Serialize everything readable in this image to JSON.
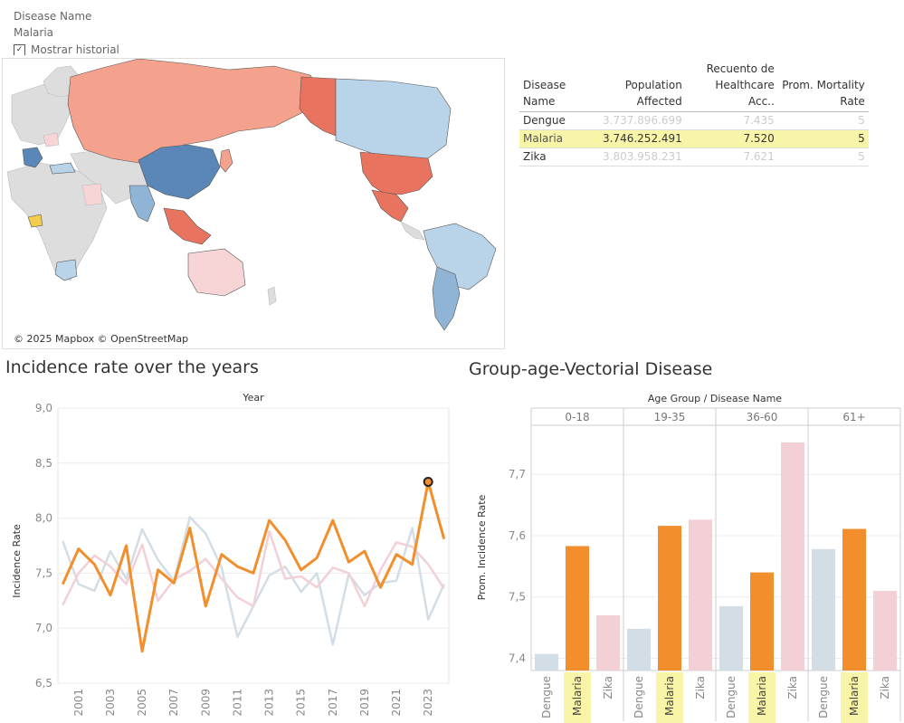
{
  "filter": {
    "title": "Disease Name",
    "value": "Malaria",
    "checkbox_label": "Mostrar historial"
  },
  "map": {
    "credit": "© 2025 Mapbox © OpenStreetMap",
    "colors": {
      "high": "#e8735f",
      "mid_high": "#f4a28d",
      "low_high": "#f7d4d6",
      "low": "#b9d4e9",
      "mid_low": "#8fb4d6",
      "very_low": "#5b86b8",
      "neutral": "#dddddd"
    }
  },
  "table": {
    "headers": [
      {
        "l1": "Disease",
        "l2": "Name"
      },
      {
        "l1": "Population",
        "l2": "Affected"
      },
      {
        "l1": "Recuento de",
        "l2": "Healthcare Acc.."
      },
      {
        "l1": "Prom. Mortality",
        "l2": "Rate"
      }
    ],
    "rows": [
      {
        "name": "Dengue",
        "population": "3.737.896.699",
        "healthcare": "7.435",
        "mortality": "5",
        "selected": false
      },
      {
        "name": "Malaria",
        "population": "3.746.252.491",
        "healthcare": "7.520",
        "mortality": "5",
        "selected": true
      },
      {
        "name": "Zika",
        "population": "3.803.958.231",
        "healthcare": "7.621",
        "mortality": "5",
        "selected": false
      }
    ]
  },
  "line_chart": {
    "title": "Incidence rate over the years",
    "top_label": "Year",
    "ylabel": "Incidence Rate",
    "x_ticks": [
      "2001",
      "2003",
      "2005",
      "2007",
      "2009",
      "2011",
      "2013",
      "2015",
      "2017",
      "2019",
      "2021",
      "2023"
    ],
    "y_ticks": [
      "6,5",
      "7,0",
      "7,5",
      "8,0",
      "8,5",
      "9,0"
    ]
  },
  "bar_chart": {
    "title": "Group-age-Vectorial Disease",
    "top_label": "Age Group  /  Disease Name",
    "ylabel": "Prom. Incidence Rate",
    "y_ticks": [
      "7,4",
      "7,5",
      "7,6",
      "7,7"
    ]
  },
  "chart_data": [
    {
      "type": "line",
      "title": "Incidence rate over the years",
      "xlabel": "Year",
      "ylabel": "Incidence Rate",
      "x": [
        2000,
        2001,
        2002,
        2003,
        2004,
        2005,
        2006,
        2007,
        2008,
        2009,
        2010,
        2011,
        2012,
        2013,
        2014,
        2015,
        2016,
        2017,
        2018,
        2019,
        2020,
        2021,
        2022,
        2023,
        2024
      ],
      "ylim": [
        6.5,
        9.0
      ],
      "highlighted_series": "Malaria",
      "highlighted_point": {
        "x": 2023,
        "y": 8.33
      },
      "series": [
        {
          "name": "Malaria",
          "color": "#f28e2b",
          "values": [
            7.4,
            7.72,
            7.58,
            7.3,
            7.75,
            6.79,
            7.53,
            7.41,
            7.91,
            7.2,
            7.67,
            7.56,
            7.5,
            7.98,
            7.8,
            7.53,
            7.64,
            7.98,
            7.6,
            7.7,
            7.37,
            7.67,
            7.58,
            8.33,
            7.81
          ]
        },
        {
          "name": "Dengue",
          "color": "#d3dde6",
          "values": [
            7.79,
            7.4,
            7.34,
            7.7,
            7.45,
            7.9,
            7.62,
            7.43,
            8.01,
            7.86,
            7.55,
            6.92,
            7.2,
            7.48,
            7.56,
            7.33,
            7.5,
            6.85,
            7.49,
            7.3,
            7.41,
            7.43,
            7.91,
            7.08,
            7.4
          ]
        },
        {
          "name": "Zika",
          "color": "#f2d0d5",
          "values": [
            7.21,
            7.5,
            7.66,
            7.56,
            7.4,
            7.76,
            7.25,
            7.44,
            7.52,
            7.63,
            7.45,
            7.28,
            7.2,
            7.88,
            7.45,
            7.47,
            7.37,
            7.55,
            7.5,
            7.2,
            7.53,
            7.78,
            7.74,
            7.58,
            7.36
          ]
        }
      ]
    },
    {
      "type": "bar",
      "title": "Group-age-Vectorial Disease",
      "xlabel": "Age Group  /  Disease Name",
      "ylabel": "Prom. Incidence Rate",
      "ylim": [
        7.38,
        7.78
      ],
      "groups": [
        "0-18",
        "19-35",
        "36-60",
        "61+"
      ],
      "categories": [
        "Dengue",
        "Malaria",
        "Zika"
      ],
      "highlighted_category": "Malaria",
      "series": [
        {
          "name": "0-18",
          "values": [
            7.407,
            7.583,
            7.47
          ]
        },
        {
          "name": "19-35",
          "values": [
            7.448,
            7.616,
            7.626
          ]
        },
        {
          "name": "36-60",
          "values": [
            7.485,
            7.54,
            7.752
          ]
        },
        {
          "name": "61+",
          "values": [
            7.578,
            7.611,
            7.51
          ]
        }
      ],
      "colors": {
        "Dengue": "#d3dde6",
        "Malaria": "#f28e2b",
        "Zika": "#f2d0d5"
      }
    }
  ]
}
